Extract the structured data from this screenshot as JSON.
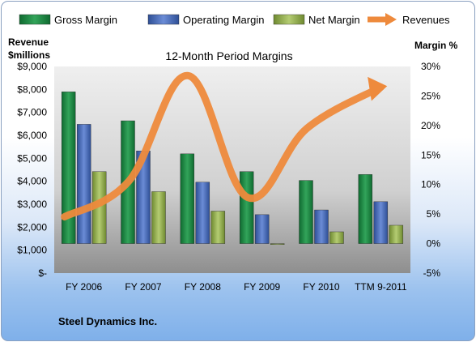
{
  "chart_data": {
    "type": "bar",
    "title": "12-Month Period Margins",
    "company": "Steel Dynamics Inc.",
    "categories": [
      "FY 2006",
      "FY 2007",
      "FY 2008",
      "FY 2009",
      "FY 2010",
      "TTM 9-2011"
    ],
    "series": [
      {
        "name": "Gross Margin",
        "type": "bar",
        "axis": "right",
        "color": "#1f8a45",
        "values": [
          25.7,
          20.8,
          15.2,
          12.2,
          10.7,
          11.7
        ]
      },
      {
        "name": "Operating Margin",
        "type": "bar",
        "axis": "right",
        "color": "#4a6fc0",
        "values": [
          20.2,
          15.7,
          10.4,
          4.9,
          5.7,
          7.1
        ]
      },
      {
        "name": "Net Margin",
        "type": "bar",
        "axis": "right",
        "color": "#94b050",
        "values": [
          12.2,
          8.8,
          5.5,
          -0.1,
          2.0,
          3.1
        ]
      },
      {
        "name": "Revenues",
        "type": "line",
        "axis": "left",
        "color": "#ee8a3c",
        "values": [
          2450,
          4000,
          8600,
          3300,
          6300,
          8100
        ]
      }
    ],
    "left_axis": {
      "label_line1": "Revenue",
      "label_line2": "$millions",
      "min": 0,
      "max": 9000,
      "step": 1000,
      "tick_labels": [
        "$-",
        "$1,000",
        "$2,000",
        "$3,000",
        "$4,000",
        "$5,000",
        "$6,000",
        "$7,000",
        "$8,000",
        "$9,000"
      ]
    },
    "right_axis": {
      "label": "Margin %",
      "min": -5,
      "max": 30,
      "step": 5,
      "tick_labels": [
        "-5%",
        "0%",
        "5%",
        "10%",
        "15%",
        "20%",
        "25%",
        "30%"
      ]
    },
    "legend_position": "top",
    "grid": false
  }
}
